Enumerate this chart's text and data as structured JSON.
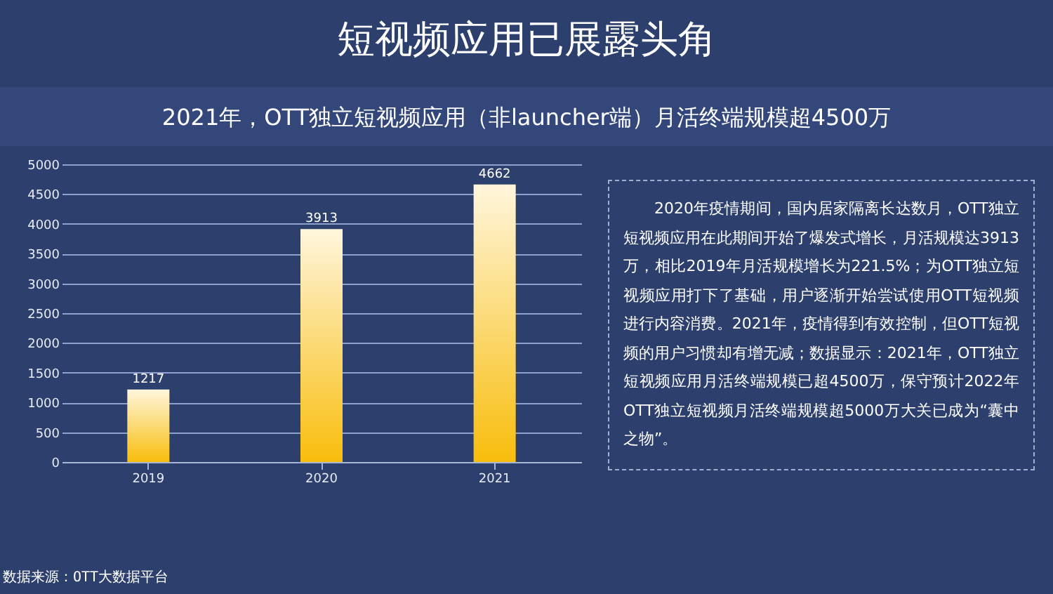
{
  "chart_data": {
    "type": "bar",
    "title": "短视频应用已展露头角",
    "subtitle": "2021年，OTT独立短视频应用（非launcher端）月活终端规模超4500万",
    "categories": [
      "2019",
      "2020",
      "2021"
    ],
    "values": [
      1217,
      3913,
      4662
    ],
    "color": "#f8bd0c",
    "ylim": [
      0,
      5000
    ],
    "yticks": [
      0,
      500,
      1000,
      1500,
      2000,
      2500,
      3000,
      3500,
      4000,
      4500,
      5000
    ],
    "grid": "y",
    "data_labels": true,
    "annotations": [
      "2020年疫情期间，国内居家隔离长达数月，OTT独立短视频应用在此期间开始了爆发式增长，月活规模达3913万，相比2019年月活规模增长为221.5%；为OTT独立短视频应用打下了基础，用户逐渐开始尝试使用OTT短视频进行内容消费。2021年，疫情得到有效控制，但OTT短视频的用户习惯却有增无减；数据显示：2021年，OTT独立短视频应用月活终端规模已超4500万，保守预计2022年OTT独立短视频月活终端规模超5000万大关已成为“囊中之物”。",
      "数据来源：OTT大数据平台"
    ]
  }
}
